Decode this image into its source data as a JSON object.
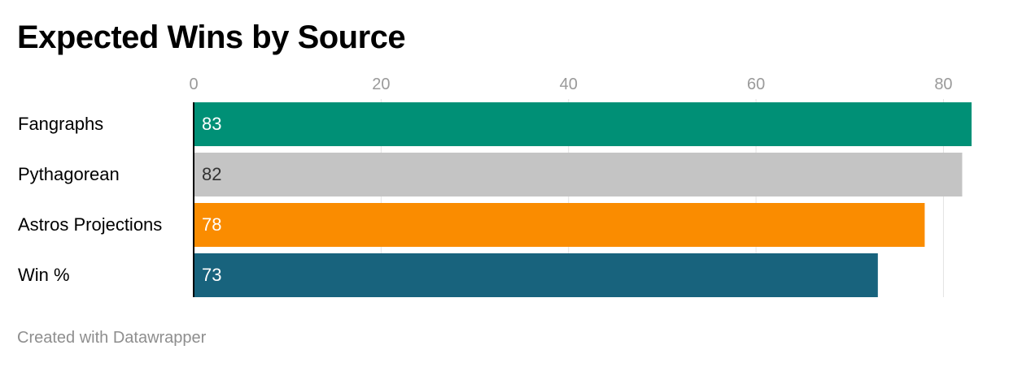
{
  "header": {
    "title": "Expected Wins by Source"
  },
  "footer": {
    "credit": "Created with Datawrapper"
  },
  "chart_data": {
    "type": "bar",
    "orientation": "horizontal",
    "title": "Expected Wins by Source",
    "xlabel": "",
    "ylabel": "",
    "categories": [
      "Fangraphs",
      "Pythagorean",
      "Astros Projections",
      "Win %"
    ],
    "values": [
      83,
      82,
      78,
      73
    ],
    "colors": [
      "#009076",
      "#c4c4c4",
      "#fa8c00",
      "#18637d"
    ],
    "label_colors": [
      "#ffffff",
      "#333333",
      "#ffffff",
      "#ffffff"
    ],
    "xticks": [
      0,
      20,
      40,
      60,
      80
    ],
    "xlim": [
      0,
      83
    ],
    "grid": true,
    "value_labels": [
      "83",
      "82",
      "78",
      "73"
    ]
  }
}
